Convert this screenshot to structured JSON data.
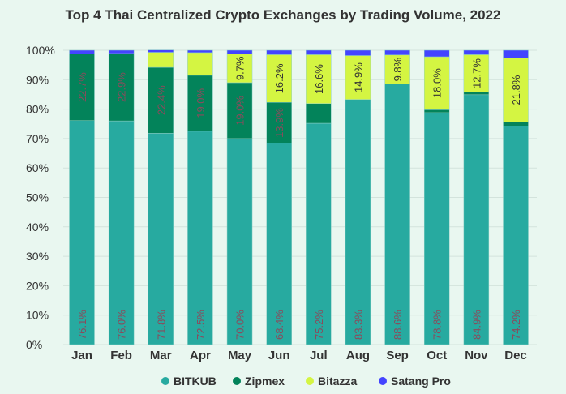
{
  "chart_data": {
    "type": "bar",
    "stacked": true,
    "title": "Top 4 Thai Centralized Crypto Exchanges by Trading Volume, 2022",
    "xlabel": "",
    "ylabel": "",
    "ylim": [
      0,
      100
    ],
    "y_ticks": [
      "0%",
      "10%",
      "20%",
      "30%",
      "40%",
      "50%",
      "60%",
      "70%",
      "80%",
      "90%",
      "100%"
    ],
    "grid": true,
    "legend_position": "bottom",
    "categories": [
      "Jan",
      "Feb",
      "Mar",
      "Apr",
      "May",
      "Jun",
      "Jul",
      "Aug",
      "Sep",
      "Oct",
      "Nov",
      "Dec"
    ],
    "series": [
      {
        "name": "BITKUB",
        "color": "#27aaa0",
        "label_color": "#8a4b5c",
        "values": [
          76.1,
          76.0,
          71.8,
          72.5,
          70.0,
          68.4,
          75.2,
          83.3,
          88.6,
          78.8,
          84.9,
          74.2
        ],
        "labels": [
          "76.1%",
          "76.0%",
          "71.8%",
          "72.5%",
          "70.0%",
          "68.4%",
          "75.2%",
          "83.3%",
          "88.6%",
          "78.8%",
          "84.9%",
          "74.2%"
        ]
      },
      {
        "name": "Zipmex",
        "color": "#03835a",
        "label_color": "#8a4b5c",
        "values": [
          22.7,
          22.9,
          22.4,
          19.0,
          19.0,
          13.9,
          6.7,
          0,
          0,
          1.0,
          0.9,
          1.4
        ],
        "labels": [
          "22.7%",
          "22.9%",
          "22.4%",
          "19.0%",
          "19.0%",
          "13.9%",
          "",
          "",
          "",
          "",
          "",
          ""
        ]
      },
      {
        "name": "Bitazza",
        "color": "#d4f542",
        "label_color": "#333333",
        "values": [
          0,
          0,
          5.1,
          7.7,
          9.7,
          16.2,
          16.6,
          14.9,
          9.8,
          18.0,
          12.7,
          21.8
        ],
        "labels": [
          "",
          "",
          "",
          "",
          "9.7%",
          "16.2%",
          "16.6%",
          "14.9%",
          "9.8%",
          "18.0%",
          "12.7%",
          "21.8%"
        ]
      },
      {
        "name": "Satang Pro",
        "color": "#4444ff",
        "label_color": "#333333",
        "values": [
          1.2,
          1.1,
          0.8,
          0.8,
          1.3,
          1.5,
          1.5,
          1.8,
          1.6,
          2.2,
          1.5,
          2.6
        ],
        "labels": [
          "",
          "",
          "",
          "",
          "",
          "",
          "",
          "",
          "",
          "",
          "",
          ""
        ]
      }
    ]
  }
}
